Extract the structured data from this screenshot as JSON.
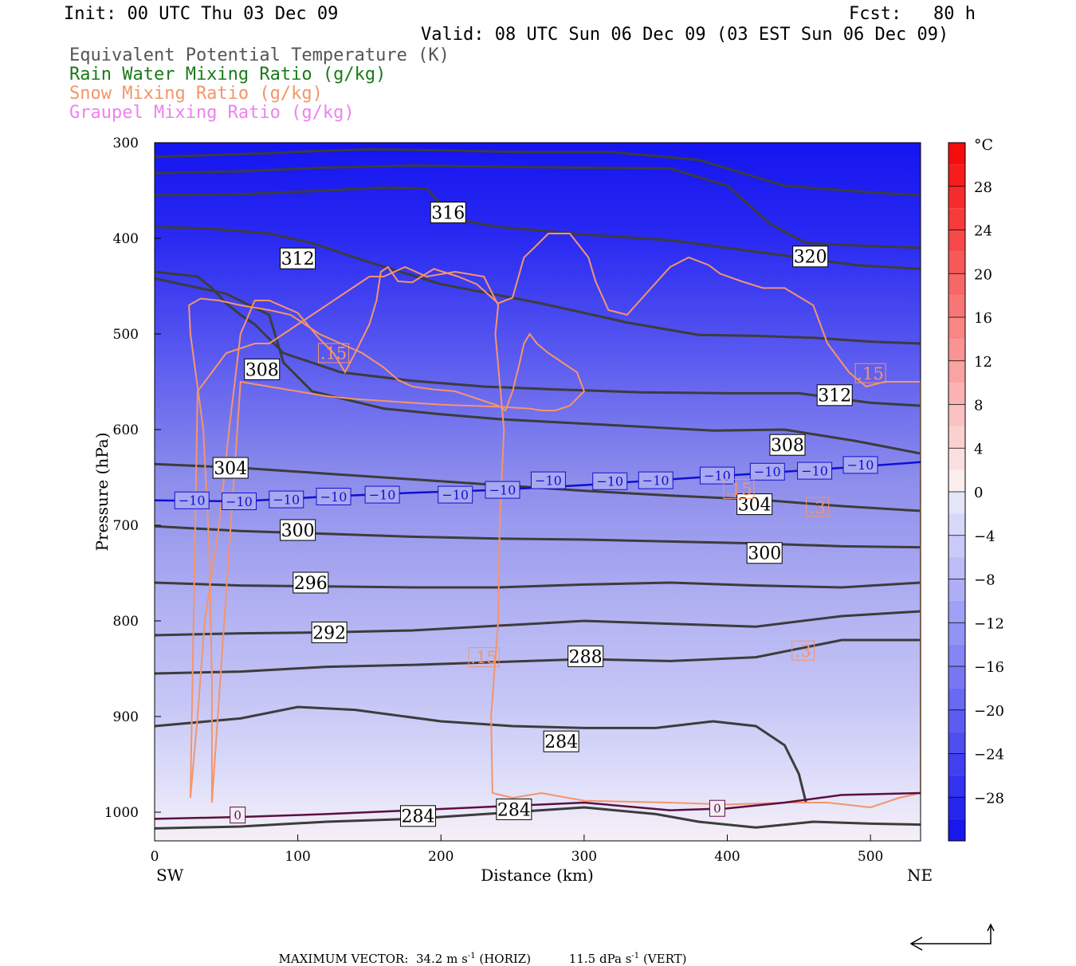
{
  "header": {
    "init": "Init: 00 UTC Thu 03 Dec 09",
    "fcst": "Fcst:   80 h",
    "valid": "Valid: 08 UTC Sun 06 Dec 09 (03 EST Sun 06 Dec 09)",
    "legend": [
      {
        "label": "Equivalent Potential Temperature (K)",
        "color": "#555555"
      },
      {
        "label": "Rain Water Mixing Ratio (g/kg)",
        "color": "#1a7a1a"
      },
      {
        "label": "Snow Mixing Ratio (g/kg)",
        "color": "#f4956a"
      },
      {
        "label": "Graupel Mixing Ratio (g/kg)",
        "color": "#ee82ee"
      }
    ]
  },
  "chart_data": {
    "type": "contour cross-section",
    "xlabel": "Distance (km)",
    "ylabel": "Pressure (hPa)",
    "xlim": [
      0,
      535
    ],
    "ylim": [
      1030,
      300
    ],
    "x_ticks": [
      0,
      100,
      200,
      300,
      400,
      500
    ],
    "y_ticks": [
      300,
      400,
      500,
      600,
      700,
      800,
      900,
      1000
    ],
    "left_end_label": "SW",
    "right_end_label": "NE",
    "colorbar": {
      "unit": "°C",
      "labels": [
        "28",
        "24",
        "20",
        "16",
        "12",
        "8",
        "4",
        "0",
        "−4",
        "−8",
        "−12",
        "−16",
        "−20",
        "−24",
        "−28"
      ],
      "values": [
        28,
        24,
        20,
        16,
        12,
        8,
        4,
        0,
        -4,
        -8,
        -12,
        -16,
        -20,
        -24,
        -28
      ],
      "range": [
        -32,
        32
      ]
    },
    "theta_e_lines": [
      {
        "x": [
          0,
          40,
          80,
          110,
          150,
          200,
          260,
          320,
          380,
          440,
          500,
          535
        ],
        "y": [
          315,
          313,
          311,
          309,
          307,
          308,
          310,
          310,
          318,
          345,
          352,
          355
        ]
      },
      {
        "x": [
          0,
          60,
          120,
          180,
          230,
          290,
          360,
          400,
          430,
          455,
          500,
          535
        ],
        "y": [
          332,
          330,
          326,
          324,
          325,
          326,
          327,
          345,
          385,
          405,
          408,
          410
        ]
      },
      {
        "x": [
          0,
          60,
          120,
          160,
          190,
          210,
          240,
          270,
          300,
          360,
          400,
          440,
          490,
          535
        ],
        "y": [
          355,
          354,
          350,
          347,
          348,
          380,
          388,
          392,
          396,
          402,
          410,
          418,
          428,
          432
        ]
      },
      {
        "x": [
          0,
          40,
          80,
          110,
          150,
          200,
          270,
          330,
          380,
          420,
          460,
          500,
          535
        ],
        "y": [
          388,
          390,
          395,
          405,
          425,
          448,
          468,
          488,
          501,
          502,
          504,
          508,
          510
        ]
      },
      {
        "x": [
          0,
          30,
          40,
          50,
          60,
          70,
          90,
          130,
          180,
          230,
          280,
          340,
          400,
          450,
          500,
          535
        ],
        "y": [
          435,
          440,
          452,
          468,
          480,
          490,
          520,
          540,
          549,
          555,
          558,
          561,
          562,
          562,
          572,
          575
        ]
      },
      {
        "x": [
          0,
          50,
          80,
          90,
          110,
          160,
          200,
          240,
          290,
          340,
          390,
          440,
          490,
          535
        ],
        "y": [
          442,
          458,
          480,
          530,
          560,
          578,
          584,
          589,
          593,
          597,
          601,
          600,
          612,
          625
        ]
      },
      {
        "x": [
          0,
          60,
          120,
          180,
          240,
          300,
          360,
          420,
          480,
          535
        ],
        "y": [
          636,
          640,
          646,
          652,
          658,
          664,
          669,
          673,
          680,
          685
        ]
      },
      {
        "x": [
          0,
          60,
          120,
          180,
          240,
          300,
          360,
          420,
          480,
          535
        ],
        "y": [
          701,
          706,
          709,
          712,
          714,
          715,
          717,
          719,
          722,
          723
        ]
      },
      {
        "x": [
          0,
          60,
          120,
          180,
          240,
          300,
          360,
          420,
          480,
          535
        ],
        "y": [
          760,
          763,
          764,
          765,
          765,
          762,
          760,
          763,
          765,
          760
        ]
      },
      {
        "x": [
          0,
          60,
          120,
          180,
          240,
          300,
          360,
          420,
          480,
          535
        ],
        "y": [
          815,
          813,
          812,
          810,
          805,
          800,
          803,
          806,
          795,
          790
        ]
      },
      {
        "x": [
          0,
          60,
          120,
          180,
          240,
          300,
          360,
          420,
          480,
          535
        ],
        "y": [
          855,
          853,
          848,
          846,
          843,
          840,
          842,
          838,
          820,
          820
        ]
      },
      {
        "x": [
          0,
          60,
          100,
          140,
          200,
          250,
          300,
          350,
          390,
          420,
          440,
          450,
          455
        ],
        "y": [
          910,
          902,
          890,
          893,
          905,
          910,
          912,
          912,
          905,
          910,
          930,
          960,
          990
        ]
      },
      {
        "x": [
          0,
          60,
          120,
          180,
          240,
          300,
          350,
          380,
          420,
          460,
          500,
          535
        ],
        "y": [
          1017,
          1015,
          1010,
          1007,
          1001,
          995,
          1002,
          1010,
          1016,
          1010,
          1012,
          1013
        ]
      }
    ],
    "theta_e_labels": [
      {
        "text": "316",
        "x": 205,
        "y": 373
      },
      {
        "text": "312",
        "x": 100,
        "y": 421
      },
      {
        "text": "320",
        "x": 458,
        "y": 419
      },
      {
        "text": "308",
        "x": 75,
        "y": 537
      },
      {
        "text": "312",
        "x": 475,
        "y": 564
      },
      {
        "text": "308",
        "x": 442,
        "y": 616
      },
      {
        "text": "304",
        "x": 53,
        "y": 640
      },
      {
        "text": "304",
        "x": 419,
        "y": 678
      },
      {
        "text": "300",
        "x": 100,
        "y": 705
      },
      {
        "text": "300",
        "x": 426,
        "y": 729
      },
      {
        "text": "296",
        "x": 109,
        "y": 760
      },
      {
        "text": "292",
        "x": 122,
        "y": 812
      },
      {
        "text": "288",
        "x": 301,
        "y": 837
      },
      {
        "text": "284",
        "x": 284,
        "y": 926
      },
      {
        "text": "284",
        "x": 184,
        "y": 1004
      },
      {
        "text": "284",
        "x": 251,
        "y": 997
      }
    ],
    "minus10_isotherm": {
      "x": [
        0,
        60,
        120,
        180,
        240,
        300,
        360,
        420,
        480,
        535
      ],
      "y": [
        674,
        675,
        670,
        666,
        663,
        658,
        652,
        646,
        640,
        634
      ],
      "labels": [
        {
          "text": "−10",
          "x": 26,
          "y": 674
        },
        {
          "text": "−10",
          "x": 59,
          "y": 675
        },
        {
          "text": "−10",
          "x": 92,
          "y": 673
        },
        {
          "text": "−10",
          "x": 125,
          "y": 670
        },
        {
          "text": "−10",
          "x": 159,
          "y": 668
        },
        {
          "text": "−10",
          "x": 210,
          "y": 668
        },
        {
          "text": "−10",
          "x": 243,
          "y": 663
        },
        {
          "text": "−10",
          "x": 275,
          "y": 653
        },
        {
          "text": "−10",
          "x": 318,
          "y": 654
        },
        {
          "text": "−10",
          "x": 350,
          "y": 653
        },
        {
          "text": "−10",
          "x": 393,
          "y": 648
        },
        {
          "text": "−10",
          "x": 428,
          "y": 644
        },
        {
          "text": "−10",
          "x": 461,
          "y": 643
        },
        {
          "text": "−10",
          "x": 493,
          "y": 637
        }
      ]
    },
    "zero_isotherm": {
      "x": [
        0,
        60,
        120,
        180,
        240,
        300,
        360,
        400,
        440,
        480,
        535
      ],
      "y": [
        1007,
        1005,
        1002,
        998,
        994,
        990,
        998,
        996,
        990,
        982,
        980
      ],
      "labels": [
        {
          "text": "0",
          "x": 58,
          "y": 1003
        },
        {
          "text": "0",
          "x": 393,
          "y": 996
        }
      ]
    },
    "snow_contours": [
      {
        "level": ".15",
        "x": [
          25,
          30,
          35,
          45,
          52,
          60,
          70,
          80,
          100,
          115,
          125,
          133,
          140,
          150,
          155,
          158,
          163,
          170,
          180,
          195,
          212,
          225,
          240,
          250,
          258,
          265,
          275,
          290,
          303,
          308,
          317,
          325,
          330,
          345,
          360,
          373,
          387,
          395,
          410,
          425,
          440,
          460,
          470,
          485,
          497,
          510,
          535,
          535,
          520,
          500,
          470,
          440,
          400,
          360,
          300,
          270,
          250,
          236,
          235,
          240,
          241,
          244,
          238,
          240,
          230,
          210,
          190,
          175,
          160,
          150,
          140,
          130,
          120,
          110,
          100,
          90,
          80,
          70,
          60,
          50,
          40,
          30,
          25
        ],
        "y": [
          985,
          900,
          800,
          700,
          600,
          500,
          465,
          465,
          478,
          505,
          520,
          540,
          520,
          490,
          465,
          435,
          430,
          445,
          446,
          432,
          440,
          448,
          468,
          462,
          420,
          410,
          395,
          395,
          420,
          445,
          475,
          478,
          480,
          455,
          430,
          420,
          428,
          437,
          445,
          452,
          452,
          470,
          510,
          540,
          555,
          550,
          550,
          980,
          985,
          995,
          990,
          990,
          992,
          990,
          988,
          980,
          985,
          980,
          900,
          800,
          700,
          600,
          500,
          470,
          440,
          435,
          440,
          430,
          440,
          440,
          450,
          460,
          470,
          480,
          490,
          500,
          510,
          510,
          515,
          520,
          540,
          560,
          985
        ]
      },
      {
        "level": ".15",
        "x": [
          40,
          40,
          38,
          34,
          25,
          24,
          32,
          45,
          60,
          80,
          95,
          105,
          115,
          130,
          145,
          160,
          170,
          180,
          195,
          210,
          220,
          230,
          240,
          245,
          250,
          255,
          258,
          262,
          267,
          275,
          285,
          295,
          300,
          290,
          280,
          270,
          262,
          250,
          240,
          220,
          200,
          180,
          160,
          140,
          120,
          100,
          80,
          60,
          40
        ],
        "y": [
          990,
          860,
          720,
          600,
          500,
          470,
          463,
          465,
          470,
          475,
          480,
          490,
          500,
          510,
          520,
          535,
          548,
          555,
          558,
          560,
          565,
          570,
          575,
          580,
          560,
          530,
          510,
          500,
          510,
          520,
          530,
          540,
          560,
          575,
          580,
          580,
          578,
          577,
          576,
          575,
          574,
          572,
          570,
          568,
          565,
          560,
          555,
          550,
          990
        ]
      }
    ],
    "snow_labels": [
      {
        "text": ".15",
        "x": 125,
        "y": 520
      },
      {
        "text": ".15",
        "x": 500,
        "y": 541
      },
      {
        "text": ".15",
        "x": 408,
        "y": 662
      },
      {
        "text": ".3",
        "x": 463,
        "y": 681
      },
      {
        "text": ".15",
        "x": 230,
        "y": 838
      },
      {
        "text": ".3",
        "x": 453,
        "y": 831
      }
    ],
    "vector_scale": {
      "max_horiz": "34.2",
      "max_vert": "11.5"
    }
  },
  "footer": {
    "prefix": "MAXIMUM VECTOR:",
    "horiz_unit": "m s",
    "horiz_tag": "(HORIZ)",
    "vert_unit": "dPa s",
    "vert_tag": "(VERT)",
    "exp": "-1"
  }
}
